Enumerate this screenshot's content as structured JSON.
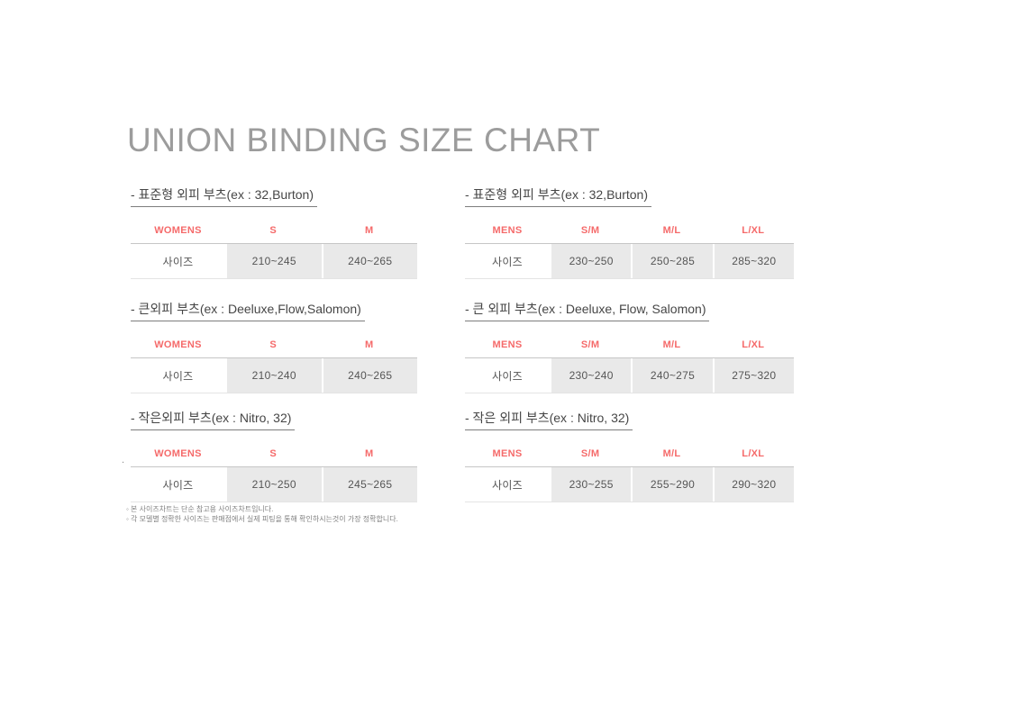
{
  "page": {
    "title": "UNION BINDING SIZE CHART"
  },
  "colors": {
    "accent_red": "#f56a6a",
    "cell_bg": "#e9e9e9",
    "title_gray": "#9c9c9c",
    "heading_text": "#464646",
    "cell_text": "#555555",
    "note_text": "#818181"
  },
  "sections": [
    {
      "heading": "- 표준형 외피 부츠(ex : 32,Burton)",
      "group": "WOMENS",
      "header": [
        "WOMENS",
        "S",
        "M"
      ],
      "row_label": "사이즈",
      "values": [
        "210~245",
        "240~265"
      ]
    },
    {
      "heading": "- 표준형 외피 부츠(ex : 32,Burton)",
      "group": "MENS",
      "header": [
        "MENS",
        "S/M",
        "M/L",
        "L/XL"
      ],
      "row_label": "사이즈",
      "values": [
        "230~250",
        "250~285",
        "285~320"
      ]
    },
    {
      "heading": "- 큰외피 부츠(ex : Deeluxe,Flow,Salomon)",
      "group": "WOMENS",
      "header": [
        "WOMENS",
        "S",
        "M"
      ],
      "row_label": "사이즈",
      "values": [
        "210~240",
        "240~265"
      ]
    },
    {
      "heading": "- 큰 외피 부츠(ex : Deeluxe, Flow, Salomon)",
      "group": "MENS",
      "header": [
        "MENS",
        "S/M",
        "M/L",
        "L/XL"
      ],
      "row_label": "사이즈",
      "values": [
        "230~240",
        "240~275",
        "275~320"
      ]
    },
    {
      "heading": "- 작은외피 부츠(ex : Nitro, 32)",
      "group": "WOMENS",
      "header": [
        "WOMENS",
        "S",
        "M"
      ],
      "row_label": "사이즈",
      "values": [
        "210~250",
        "245~265"
      ]
    },
    {
      "heading": "- 작은 외피 부츠(ex : Nitro, 32)",
      "group": "MENS",
      "header": [
        "MENS",
        "S/M",
        "M/L",
        "L/XL"
      ],
      "row_label": "사이즈",
      "values": [
        "230~255",
        "255~290",
        "290~320"
      ]
    }
  ],
  "notes": {
    "line1": "◦ 본 사이즈차트는 단순 참고용 사이즈차트입니다.",
    "line2": "◦ 각 모델별 정확한 사이즈는 판매점에서 실제 피팅을 통해 확인하시는것이 가장 정확합니다."
  },
  "stray_mark": "."
}
